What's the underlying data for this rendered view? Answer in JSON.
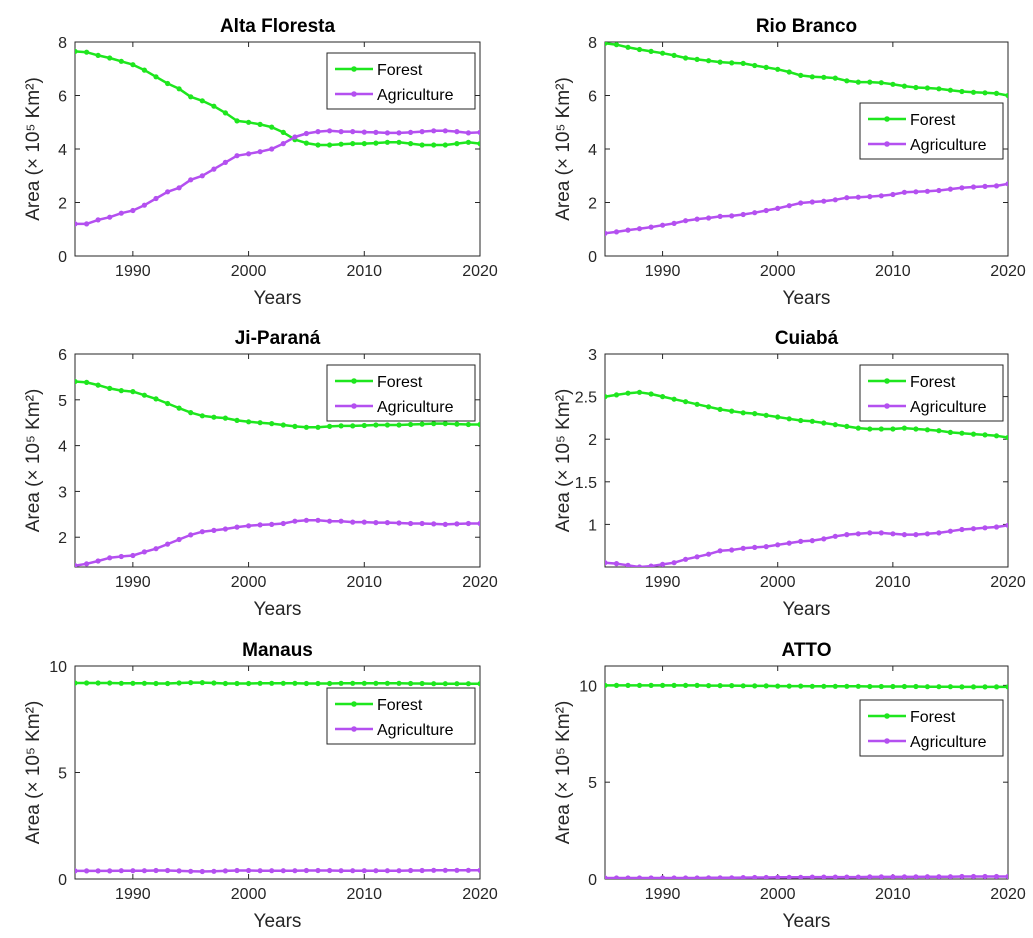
{
  "figure": {
    "colors": {
      "forest": "#1ee61e",
      "agriculture": "#b450f0",
      "axes": "#262626"
    }
  },
  "chart_data": [
    {
      "type": "line",
      "title": "Alta Floresta",
      "xlabel": "Years",
      "ylabel": "Area (× 10⁵ Km²)",
      "xlim": [
        1985,
        2020
      ],
      "ylim": [
        0,
        8
      ],
      "xticks": [
        1990,
        2000,
        2010,
        2020
      ],
      "yticks": [
        0,
        2,
        4,
        6,
        8
      ],
      "legend": "top-right",
      "x": [
        1985,
        1986,
        1987,
        1988,
        1989,
        1990,
        1991,
        1992,
        1993,
        1994,
        1995,
        1996,
        1997,
        1998,
        1999,
        2000,
        2001,
        2002,
        2003,
        2004,
        2005,
        2006,
        2007,
        2008,
        2009,
        2010,
        2011,
        2012,
        2013,
        2014,
        2015,
        2016,
        2017,
        2018,
        2019,
        2020
      ],
      "series": [
        {
          "name": "Forest",
          "values": [
            7.65,
            7.62,
            7.5,
            7.4,
            7.28,
            7.15,
            6.95,
            6.7,
            6.45,
            6.25,
            5.95,
            5.8,
            5.6,
            5.35,
            5.05,
            5.0,
            4.92,
            4.82,
            4.62,
            4.35,
            4.22,
            4.15,
            4.15,
            4.18,
            4.2,
            4.2,
            4.22,
            4.25,
            4.25,
            4.2,
            4.15,
            4.15,
            4.15,
            4.2,
            4.25,
            4.2
          ]
        },
        {
          "name": "Agriculture",
          "values": [
            1.2,
            1.2,
            1.35,
            1.45,
            1.6,
            1.7,
            1.9,
            2.15,
            2.4,
            2.55,
            2.85,
            3.0,
            3.25,
            3.5,
            3.75,
            3.82,
            3.9,
            4.0,
            4.2,
            4.45,
            4.58,
            4.65,
            4.68,
            4.65,
            4.65,
            4.63,
            4.62,
            4.6,
            4.6,
            4.62,
            4.65,
            4.68,
            4.68,
            4.65,
            4.6,
            4.62
          ]
        }
      ]
    },
    {
      "type": "line",
      "title": "Rio Branco",
      "xlabel": "Years",
      "ylabel": "Area (× 10⁵ Km²)",
      "xlim": [
        1985,
        2020
      ],
      "ylim": [
        0,
        8
      ],
      "xticks": [
        1990,
        2000,
        2010,
        2020
      ],
      "yticks": [
        0,
        2,
        4,
        6,
        8
      ],
      "legend": "right",
      "x": [
        1985,
        1986,
        1987,
        1988,
        1989,
        1990,
        1991,
        1992,
        1993,
        1994,
        1995,
        1996,
        1997,
        1998,
        1999,
        2000,
        2001,
        2002,
        2003,
        2004,
        2005,
        2006,
        2007,
        2008,
        2009,
        2010,
        2011,
        2012,
        2013,
        2014,
        2015,
        2016,
        2017,
        2018,
        2019,
        2020
      ],
      "series": [
        {
          "name": "Forest",
          "values": [
            7.95,
            7.9,
            7.8,
            7.72,
            7.65,
            7.58,
            7.5,
            7.4,
            7.35,
            7.3,
            7.25,
            7.22,
            7.2,
            7.12,
            7.05,
            6.98,
            6.88,
            6.75,
            6.7,
            6.68,
            6.65,
            6.55,
            6.5,
            6.5,
            6.48,
            6.42,
            6.35,
            6.3,
            6.28,
            6.25,
            6.2,
            6.15,
            6.12,
            6.1,
            6.08,
            6.0
          ]
        },
        {
          "name": "Agriculture",
          "values": [
            0.85,
            0.9,
            0.97,
            1.02,
            1.08,
            1.15,
            1.22,
            1.32,
            1.38,
            1.42,
            1.48,
            1.5,
            1.55,
            1.62,
            1.7,
            1.78,
            1.88,
            1.98,
            2.02,
            2.05,
            2.1,
            2.18,
            2.2,
            2.22,
            2.25,
            2.3,
            2.38,
            2.4,
            2.42,
            2.45,
            2.5,
            2.55,
            2.58,
            2.6,
            2.62,
            2.7
          ]
        }
      ]
    },
    {
      "type": "line",
      "title": "Ji-Paraná",
      "xlabel": "Years",
      "ylabel": "Area (× 10⁵ Km²)",
      "xlim": [
        1985,
        2020
      ],
      "ylim": [
        1.35,
        6
      ],
      "xticks": [
        1990,
        2000,
        2010,
        2020
      ],
      "yticks": [
        2,
        3,
        4,
        5,
        6
      ],
      "legend": "top-right",
      "x": [
        1985,
        1986,
        1987,
        1988,
        1989,
        1990,
        1991,
        1992,
        1993,
        1994,
        1995,
        1996,
        1997,
        1998,
        1999,
        2000,
        2001,
        2002,
        2003,
        2004,
        2005,
        2006,
        2007,
        2008,
        2009,
        2010,
        2011,
        2012,
        2013,
        2014,
        2015,
        2016,
        2017,
        2018,
        2019,
        2020
      ],
      "series": [
        {
          "name": "Forest",
          "values": [
            5.4,
            5.38,
            5.32,
            5.25,
            5.2,
            5.18,
            5.1,
            5.02,
            4.92,
            4.82,
            4.72,
            4.65,
            4.62,
            4.6,
            4.55,
            4.52,
            4.5,
            4.48,
            4.45,
            4.42,
            4.4,
            4.4,
            4.42,
            4.43,
            4.43,
            4.44,
            4.45,
            4.45,
            4.45,
            4.46,
            4.47,
            4.48,
            4.48,
            4.47,
            4.46,
            4.46
          ]
        },
        {
          "name": "Agriculture",
          "values": [
            1.38,
            1.42,
            1.48,
            1.55,
            1.58,
            1.6,
            1.68,
            1.75,
            1.85,
            1.95,
            2.05,
            2.12,
            2.15,
            2.18,
            2.22,
            2.25,
            2.27,
            2.28,
            2.3,
            2.35,
            2.37,
            2.37,
            2.35,
            2.35,
            2.33,
            2.33,
            2.32,
            2.32,
            2.31,
            2.3,
            2.3,
            2.29,
            2.28,
            2.29,
            2.3,
            2.3
          ]
        }
      ]
    },
    {
      "type": "line",
      "title": "Cuiabá",
      "xlabel": "Years",
      "ylabel": "Area (× 10⁵ Km²)",
      "xlim": [
        1985,
        2020
      ],
      "ylim": [
        0.5,
        3
      ],
      "xticks": [
        1990,
        2000,
        2010,
        2020
      ],
      "yticks": [
        1,
        1.5,
        2,
        2.5,
        3
      ],
      "legend": "top-right",
      "x": [
        1985,
        1986,
        1987,
        1988,
        1989,
        1990,
        1991,
        1992,
        1993,
        1994,
        1995,
        1996,
        1997,
        1998,
        1999,
        2000,
        2001,
        2002,
        2003,
        2004,
        2005,
        2006,
        2007,
        2008,
        2009,
        2010,
        2011,
        2012,
        2013,
        2014,
        2015,
        2016,
        2017,
        2018,
        2019,
        2020
      ],
      "series": [
        {
          "name": "Forest",
          "values": [
            2.5,
            2.52,
            2.54,
            2.55,
            2.53,
            2.5,
            2.47,
            2.44,
            2.41,
            2.38,
            2.35,
            2.33,
            2.31,
            2.3,
            2.28,
            2.26,
            2.24,
            2.22,
            2.21,
            2.19,
            2.17,
            2.15,
            2.13,
            2.12,
            2.12,
            2.12,
            2.13,
            2.12,
            2.11,
            2.1,
            2.08,
            2.07,
            2.06,
            2.05,
            2.04,
            2.02
          ]
        },
        {
          "name": "Agriculture",
          "values": [
            0.55,
            0.54,
            0.52,
            0.5,
            0.51,
            0.53,
            0.55,
            0.59,
            0.62,
            0.65,
            0.69,
            0.7,
            0.72,
            0.73,
            0.74,
            0.76,
            0.78,
            0.8,
            0.81,
            0.83,
            0.86,
            0.88,
            0.89,
            0.9,
            0.9,
            0.89,
            0.88,
            0.88,
            0.89,
            0.9,
            0.92,
            0.94,
            0.95,
            0.96,
            0.97,
            0.99
          ]
        }
      ]
    },
    {
      "type": "line",
      "title": "Manaus",
      "xlabel": "Years",
      "ylabel": "Area (× 10⁵ Km²)",
      "xlim": [
        1985,
        2020
      ],
      "ylim": [
        0,
        10
      ],
      "xticks": [
        1990,
        2000,
        2010,
        2020
      ],
      "yticks": [
        0,
        5,
        10
      ],
      "legend": "right",
      "x": [
        1985,
        1986,
        1987,
        1988,
        1989,
        1990,
        1991,
        1992,
        1993,
        1994,
        1995,
        1996,
        1997,
        1998,
        1999,
        2000,
        2001,
        2002,
        2003,
        2004,
        2005,
        2006,
        2007,
        2008,
        2009,
        2010,
        2011,
        2012,
        2013,
        2014,
        2015,
        2016,
        2017,
        2018,
        2019,
        2020
      ],
      "series": [
        {
          "name": "Forest",
          "values": [
            9.2,
            9.2,
            9.2,
            9.2,
            9.19,
            9.19,
            9.19,
            9.18,
            9.18,
            9.2,
            9.22,
            9.22,
            9.2,
            9.18,
            9.18,
            9.18,
            9.19,
            9.19,
            9.19,
            9.19,
            9.18,
            9.18,
            9.18,
            9.19,
            9.19,
            9.19,
            9.19,
            9.19,
            9.19,
            9.18,
            9.18,
            9.17,
            9.17,
            9.17,
            9.17,
            9.17
          ]
        },
        {
          "name": "Agriculture",
          "values": [
            0.38,
            0.38,
            0.38,
            0.38,
            0.39,
            0.39,
            0.39,
            0.4,
            0.4,
            0.38,
            0.36,
            0.35,
            0.36,
            0.38,
            0.4,
            0.4,
            0.39,
            0.39,
            0.39,
            0.39,
            0.4,
            0.4,
            0.4,
            0.39,
            0.39,
            0.39,
            0.39,
            0.39,
            0.39,
            0.4,
            0.4,
            0.41,
            0.41,
            0.41,
            0.41,
            0.41
          ]
        }
      ]
    },
    {
      "type": "line",
      "title": "ATTO",
      "xlabel": "Years",
      "ylabel": "Area (× 10⁵ Km²)",
      "xlim": [
        1985,
        2020
      ],
      "ylim": [
        0,
        11
      ],
      "xticks": [
        1990,
        2000,
        2010,
        2020
      ],
      "yticks": [
        0,
        5,
        10
      ],
      "legend": "right",
      "x": [
        1985,
        1986,
        1987,
        1988,
        1989,
        1990,
        1991,
        1992,
        1993,
        1994,
        1995,
        1996,
        1997,
        1998,
        1999,
        2000,
        2001,
        2002,
        2003,
        2004,
        2005,
        2006,
        2007,
        2008,
        2009,
        2010,
        2011,
        2012,
        2013,
        2014,
        2015,
        2016,
        2017,
        2018,
        2019,
        2020
      ],
      "series": [
        {
          "name": "Forest",
          "values": [
            10.0,
            10.0,
            10.0,
            10.0,
            10.0,
            10.0,
            10.0,
            10.0,
            10.0,
            9.99,
            9.99,
            9.99,
            9.98,
            9.97,
            9.97,
            9.96,
            9.96,
            9.96,
            9.95,
            9.95,
            9.95,
            9.95,
            9.95,
            9.94,
            9.94,
            9.94,
            9.94,
            9.94,
            9.93,
            9.93,
            9.93,
            9.92,
            9.92,
            9.92,
            9.92,
            9.92
          ]
        },
        {
          "name": "Agriculture",
          "values": [
            0.05,
            0.05,
            0.05,
            0.05,
            0.05,
            0.05,
            0.05,
            0.05,
            0.05,
            0.06,
            0.06,
            0.06,
            0.07,
            0.08,
            0.08,
            0.09,
            0.09,
            0.09,
            0.1,
            0.1,
            0.1,
            0.1,
            0.1,
            0.11,
            0.11,
            0.11,
            0.11,
            0.11,
            0.12,
            0.12,
            0.12,
            0.13,
            0.13,
            0.13,
            0.13,
            0.13
          ]
        }
      ]
    }
  ]
}
